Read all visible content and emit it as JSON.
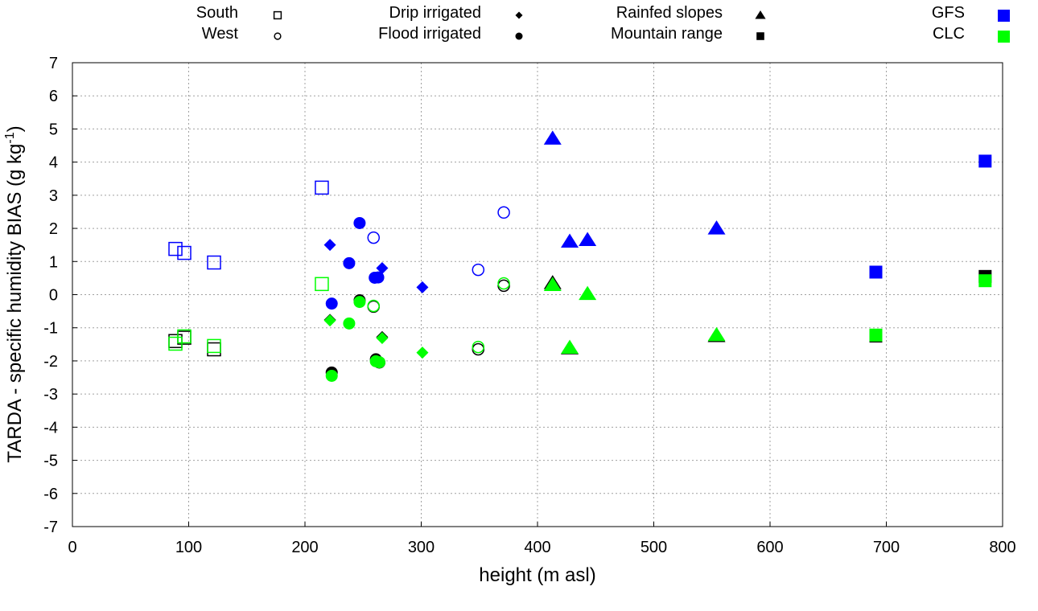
{
  "chart_data": {
    "type": "scatter",
    "xlabel": "height (m asl)",
    "ylabel_main": "TARDA - specific humidity BIAS (g kg",
    "ylabel_sup": "-1",
    "ylabel_end": ")",
    "xlim": [
      0,
      800
    ],
    "ylim": [
      -7,
      7
    ],
    "xticks": [
      0,
      100,
      200,
      300,
      400,
      500,
      600,
      700,
      800
    ],
    "yticks": [
      7,
      6,
      5,
      4,
      3,
      2,
      1,
      0,
      -1,
      -2,
      -3,
      -4,
      -5,
      -6,
      -7
    ],
    "grid": true,
    "legend_shapes": [
      {
        "label": "South",
        "shape": "open-square"
      },
      {
        "label": "West",
        "shape": "open-circle"
      },
      {
        "label": "Drip irrigated",
        "shape": "diamond"
      },
      {
        "label": "Flood irrigated",
        "shape": "circle"
      },
      {
        "label": "Rainfed slopes",
        "shape": "triangle"
      },
      {
        "label": "Mountain range",
        "shape": "square"
      }
    ],
    "legend_colors": [
      {
        "label": "GFS",
        "color": "#0000ff"
      },
      {
        "label": "CLC",
        "color": "#00ff00"
      }
    ],
    "series": [
      {
        "name": "",
        "color": "#000000",
        "points": [
          [
            88.6,
            -1.4,
            "open-square"
          ],
          [
            96.2,
            -1.3,
            "open-square"
          ],
          [
            121.8,
            -1.65,
            "open-square"
          ],
          [
            247,
            -0.17,
            "circle"
          ],
          [
            259,
            -0.36,
            "open-circle"
          ],
          [
            266.4,
            -1.28,
            "diamond"
          ],
          [
            221.5,
            -0.76,
            "diamond"
          ],
          [
            261,
            -1.95,
            "circle"
          ],
          [
            264,
            -2.05,
            "circle"
          ],
          [
            223,
            -2.35,
            "circle"
          ],
          [
            349,
            -1.65,
            "open-circle"
          ],
          [
            371,
            0.27,
            "open-circle"
          ],
          [
            413,
            0.35,
            "triangle"
          ],
          [
            427.7,
            -1.62,
            "triangle"
          ],
          [
            554,
            -1.25,
            "triangle"
          ],
          [
            691,
            -1.25,
            "square"
          ],
          [
            785,
            0.55,
            "square"
          ]
        ]
      },
      {
        "name": "CLC",
        "color": "#00ff00",
        "points": [
          [
            88.6,
            -1.48,
            "open-square"
          ],
          [
            96.2,
            -1.26,
            "open-square"
          ],
          [
            121.8,
            -1.55,
            "open-square"
          ],
          [
            214.5,
            0.32,
            "open-square"
          ],
          [
            221.5,
            -0.78,
            "diamond"
          ],
          [
            247,
            -0.22,
            "circle"
          ],
          [
            259,
            -0.34,
            "open-circle"
          ],
          [
            238,
            -0.87,
            "circle"
          ],
          [
            266.4,
            -1.31,
            "diamond"
          ],
          [
            261,
            -2.01,
            "circle"
          ],
          [
            264,
            -2.04,
            "circle"
          ],
          [
            301,
            -1.75,
            "diamond"
          ],
          [
            223,
            -2.45,
            "circle"
          ],
          [
            349,
            -1.58,
            "open-circle"
          ],
          [
            371,
            0.34,
            "open-circle"
          ],
          [
            413,
            0.29,
            "triangle"
          ],
          [
            427.7,
            -1.6,
            "triangle"
          ],
          [
            443,
            0.02,
            "triangle"
          ],
          [
            554,
            -1.22,
            "triangle"
          ],
          [
            691,
            -1.22,
            "square"
          ],
          [
            785,
            0.42,
            "square"
          ]
        ]
      },
      {
        "name": "GFS",
        "color": "#0000ff",
        "points": [
          [
            88.6,
            1.38,
            "open-square"
          ],
          [
            96.2,
            1.26,
            "open-square"
          ],
          [
            121.8,
            0.97,
            "open-square"
          ],
          [
            214.5,
            3.23,
            "open-square"
          ],
          [
            247,
            2.16,
            "circle"
          ],
          [
            259,
            1.72,
            "open-circle"
          ],
          [
            221.5,
            1.5,
            "diamond"
          ],
          [
            238,
            0.95,
            "circle"
          ],
          [
            266.4,
            0.8,
            "diamond"
          ],
          [
            260,
            0.51,
            "circle"
          ],
          [
            263,
            0.52,
            "circle"
          ],
          [
            301,
            0.22,
            "diamond"
          ],
          [
            223,
            -0.27,
            "circle"
          ],
          [
            349,
            0.75,
            "open-circle"
          ],
          [
            371,
            2.48,
            "open-circle"
          ],
          [
            413,
            4.71,
            "triangle"
          ],
          [
            427.7,
            1.6,
            "triangle"
          ],
          [
            443,
            1.65,
            "triangle"
          ],
          [
            554,
            2.0,
            "triangle"
          ],
          [
            691,
            0.68,
            "square"
          ],
          [
            785,
            4.03,
            "square"
          ]
        ]
      }
    ]
  }
}
